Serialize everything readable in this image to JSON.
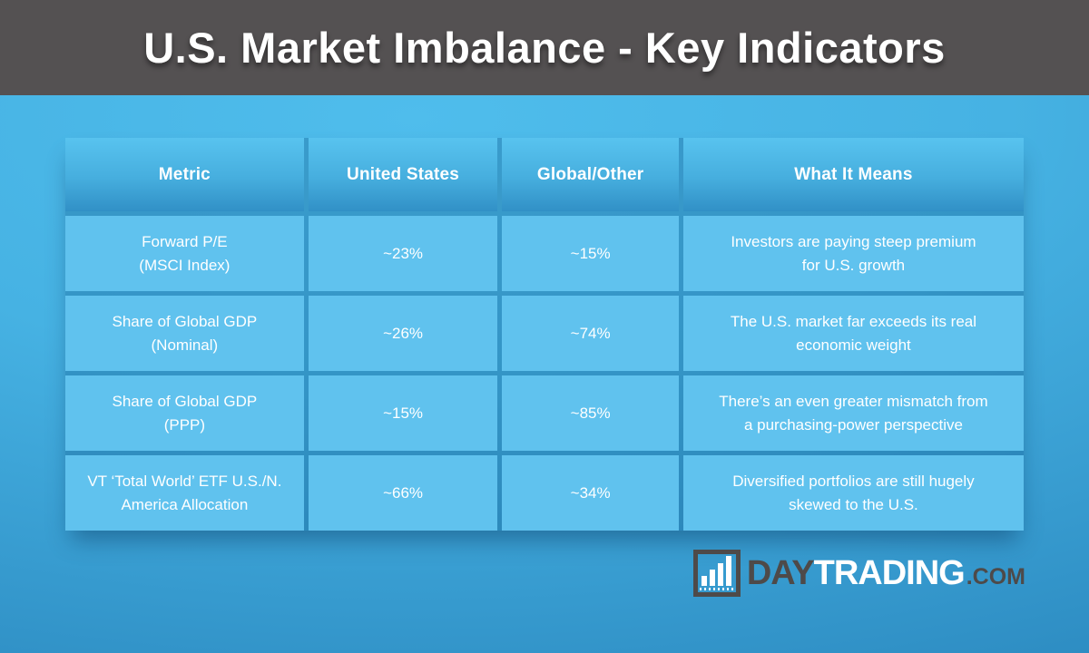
{
  "header": {
    "title": "U.S. Market Imbalance - Key Indicators"
  },
  "table": {
    "columns": [
      "Metric",
      "United States",
      "Global/Other",
      "What It Means"
    ],
    "rows": [
      {
        "metric": "Forward P/E\n(MSCI Index)",
        "us": "~23%",
        "global": "~15%",
        "meaning": "Investors are paying steep premium\nfor U.S. growth"
      },
      {
        "metric": "Share of Global GDP\n(Nominal)",
        "us": "~26%",
        "global": "~74%",
        "meaning": "The U.S. market far exceeds its real\neconomic weight"
      },
      {
        "metric": "Share of Global GDP\n(PPP)",
        "us": "~15%",
        "global": "~85%",
        "meaning": "There’s an even greater mismatch from\na purchasing-power perspective"
      },
      {
        "metric": "VT ‘Total World’ ETF U.S./N.\nAmerica Allocation",
        "us": "~66%",
        "global": "~34%",
        "meaning": "Diversified portfolios are still hugely\nskewed to the U.S."
      }
    ]
  },
  "logo": {
    "day": "DAY",
    "trading": "TRADING",
    "com": ".COM",
    "icon": "bar-chart-icon"
  },
  "colors": {
    "titlebar_bg": "#545152",
    "bg_top": "#4fbdec",
    "bg_bottom": "#2d8cc2",
    "header_cell_top": "#58c3ef",
    "header_cell_bottom": "#3190c6",
    "data_cell": "#60c2ee",
    "text": "#ffffff",
    "logo_dark": "#4e4a49"
  },
  "chart_data": {
    "type": "table",
    "title": "U.S. Market Imbalance - Key Indicators",
    "columns": [
      "Metric",
      "United States",
      "Global/Other",
      "What It Means"
    ],
    "rows": [
      [
        "Forward P/E (MSCI Index)",
        "~23%",
        "~15%",
        "Investors are paying steep premium for U.S. growth"
      ],
      [
        "Share of Global GDP (Nominal)",
        "~26%",
        "~74%",
        "The U.S. market far exceeds its real economic weight"
      ],
      [
        "Share of Global GDP (PPP)",
        "~15%",
        "~85%",
        "There’s an even greater mismatch from a purchasing-power perspective"
      ],
      [
        "VT ‘Total World’ ETF U.S./N. America Allocation",
        "~66%",
        "~34%",
        "Diversified portfolios are still hugely skewed to the U.S."
      ]
    ]
  }
}
